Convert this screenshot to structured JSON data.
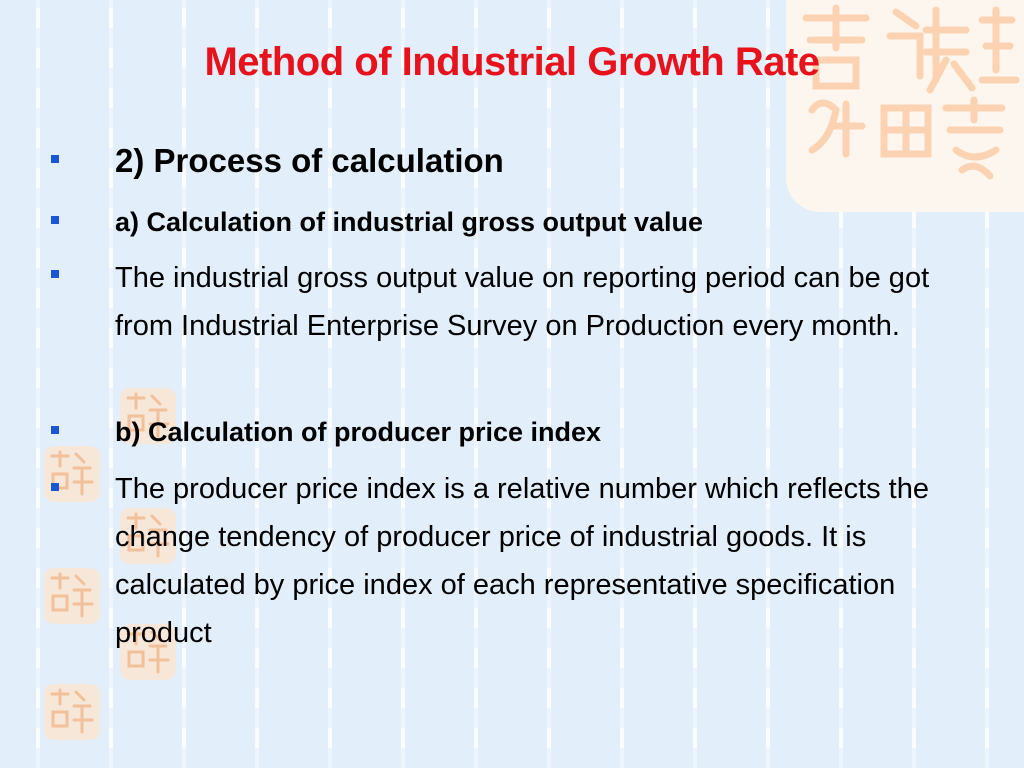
{
  "slide": {
    "title": "Method  of Industrial Growth Rate",
    "bullets": [
      {
        "text": "2) Process of calculation",
        "style": "heading"
      },
      {
        "text": "a) Calculation of industrial gross output value",
        "style": "subheading"
      },
      {
        "text": "The industrial gross output value on reporting period can be got from Industrial Enterprise Survey on Production every month.",
        "style": "body"
      },
      {
        "text": "b) Calculation of producer price index",
        "style": "subheading"
      },
      {
        "text": "The producer price index is a relative number which reflects the change tendency of producer price of industrial goods. It is calculated by price index of each representative specification product",
        "style": "body"
      }
    ]
  },
  "theme": {
    "title_color": "#e8121c",
    "bullet_color": "#1a55d6",
    "background": "#e2eef9",
    "seal_color": "#fbd9bd"
  },
  "decorations": {
    "seal_icon": "chinese-seal-stamp-icon"
  }
}
